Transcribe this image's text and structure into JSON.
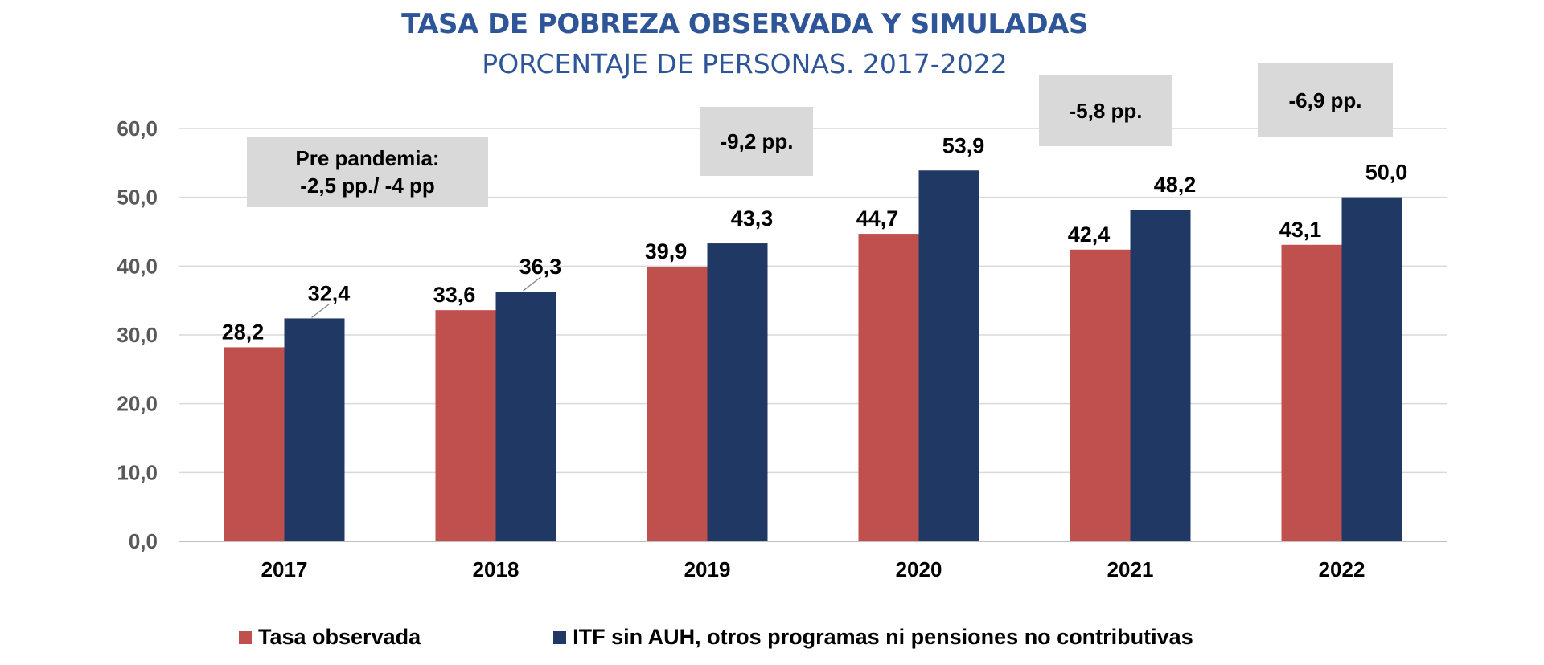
{
  "chart_data": {
    "type": "bar",
    "title": "TASA DE POBREZA OBSERVADA Y SIMULADAS",
    "subtitle": "PORCENTAJE DE PERSONAS. 2017-2022",
    "categories": [
      "2017",
      "2018",
      "2019",
      "2020",
      "2021",
      "2022"
    ],
    "series": [
      {
        "name": "Tasa observada",
        "color": "#c0504d",
        "values": [
          28.2,
          33.6,
          39.9,
          44.7,
          42.4,
          43.1
        ],
        "labels": [
          "28,2",
          "33,6",
          "39,9",
          "44,7",
          "42,4",
          "43,1"
        ]
      },
      {
        "name": "ITF sin AUH, otros programas ni pensiones no contributivas",
        "color": "#1f3864",
        "values": [
          32.4,
          36.3,
          43.3,
          53.9,
          48.2,
          50.0
        ],
        "labels": [
          "32,4",
          "36,3",
          "43,3",
          "53,9",
          "48,2",
          "50,0"
        ]
      }
    ],
    "ylim": [
      0,
      60
    ],
    "yticks": [
      "0,0",
      "10,0",
      "20,0",
      "30,0",
      "40,0",
      "50,0",
      "60,0"
    ],
    "grid": true,
    "legend": "bottom",
    "annotations": [
      {
        "category": "2017",
        "lines": [
          "Pre pandemia:",
          "-2,5 pp./ -4 pp"
        ]
      },
      {
        "category": "2019",
        "lines": [
          "-9,2 pp."
        ]
      },
      {
        "category": "2021",
        "lines": [
          "-5,8 pp."
        ]
      },
      {
        "category": "2022",
        "lines": [
          "-6,9 pp."
        ]
      }
    ]
  }
}
